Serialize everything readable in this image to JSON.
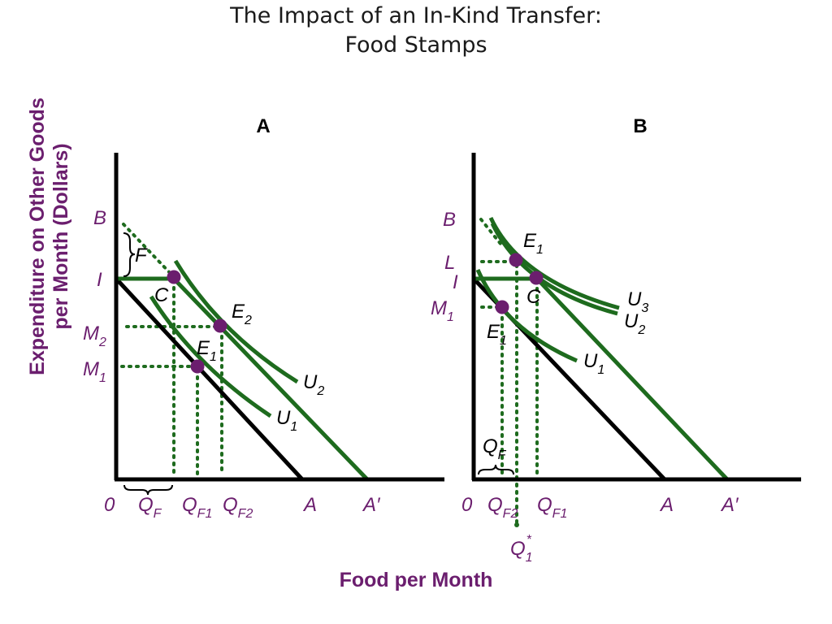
{
  "title": {
    "line1": "The Impact of an In-Kind Transfer:",
    "line2": "Food Stamps"
  },
  "axes": {
    "y_label_line1": "Expenditure on Other Goods",
    "y_label_line2": "per Month (Dollars)",
    "x_label": "Food per Month"
  },
  "panel_a": {
    "heading": "A",
    "labels": {
      "B": "B",
      "F": "F",
      "I": "I",
      "C": "C",
      "E2": "E",
      "E2_sub": "2",
      "E1": "E",
      "E1_sub": "1",
      "M2": "M",
      "M2_sub": "2",
      "M1": "M",
      "M1_sub": "1",
      "U2": "U",
      "U2_sub": "2",
      "U1": "U",
      "U1_sub": "1",
      "zero": "0",
      "QF": "Q",
      "QF_sub": "F",
      "QF1": "Q",
      "QF1_sub": "F1",
      "QF2": "Q",
      "QF2_sub": "F2",
      "A": "A",
      "Aprime": "A′"
    }
  },
  "panel_b": {
    "heading": "B",
    "labels": {
      "B": "B",
      "L": "L",
      "I": "I",
      "M1": "M",
      "M1_sub": "1",
      "E1_top": "E",
      "E1_top_sub": "1",
      "C": "C",
      "E1_low": "E",
      "E1_low_sub": "1",
      "U3": "U",
      "U3_sub": "3",
      "U2": "U",
      "U2_sub": "2",
      "U1": "U",
      "U1_sub": "1",
      "QF": "Q",
      "QF_sub": "F",
      "zero": "0",
      "QF2": "Q",
      "QF2_sub": "F2",
      "QF1": "Q",
      "QF1_sub": "F1",
      "A": "A",
      "Aprime": "A′",
      "Qstar": "Q",
      "Qstar_sub": "1",
      "Qstar_sup": "*"
    }
  },
  "colors": {
    "curve": "#1e6b1e",
    "budget": "#000000",
    "point": "#6b1e6e",
    "label": "#6b1e6e"
  }
}
